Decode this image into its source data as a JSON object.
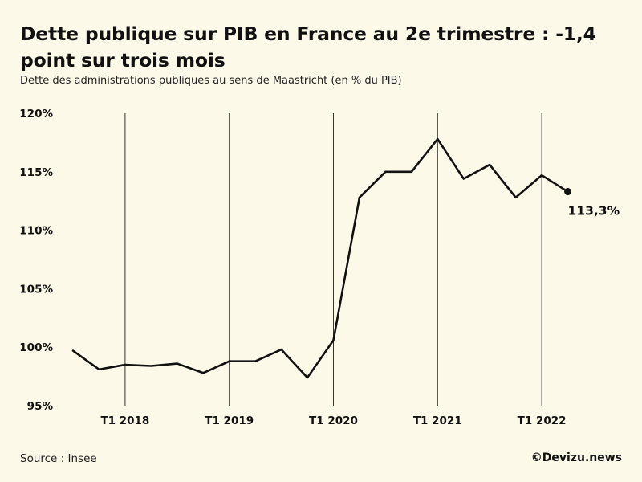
{
  "header": {
    "title": "Dette publique sur PIB en France au 2e trimestre : -1,4 point sur trois mois",
    "subtitle": "Dette des administrations publiques au sens de Maastricht (en % du PIB)"
  },
  "footer": {
    "source": "Source : Insee",
    "credit": "©Devizu.news"
  },
  "chart_data": {
    "type": "line",
    "title": "Dette publique sur PIB en France au 2e trimestre : -1,4 point sur trois mois",
    "subtitle": "Dette des administrations publiques au sens de Maastricht (en % du PIB)",
    "xlabel": "",
    "ylabel": "",
    "ylim": [
      95,
      120
    ],
    "y_ticks": [
      {
        "value": 120,
        "label": "120%"
      },
      {
        "value": 115,
        "label": "115%"
      },
      {
        "value": 110,
        "label": "110%"
      },
      {
        "value": 105,
        "label": "105%"
      },
      {
        "value": 100,
        "label": "100%"
      },
      {
        "value": 95,
        "label": "95%"
      }
    ],
    "x_ticks": [
      {
        "index": 2,
        "label": "T1 2018"
      },
      {
        "index": 6,
        "label": "T1 2019"
      },
      {
        "index": 10,
        "label": "T1 2020"
      },
      {
        "index": 14,
        "label": "T1 2021"
      },
      {
        "index": 18,
        "label": "T1 2022"
      }
    ],
    "grid": "vertical",
    "x": [
      "T3 2017",
      "T4 2017",
      "T1 2018",
      "T2 2018",
      "T3 2018",
      "T4 2018",
      "T1 2019",
      "T2 2019",
      "T3 2019",
      "T4 2019",
      "T1 2020",
      "T2 2020",
      "T3 2020",
      "T4 2020",
      "T1 2021",
      "T2 2021",
      "T3 2021",
      "T4 2021",
      "T1 2022",
      "T2 2022"
    ],
    "series": [
      {
        "values": [
          99.7,
          98.1,
          98.5,
          98.4,
          98.6,
          97.8,
          98.8,
          98.8,
          99.8,
          97.4,
          100.6,
          112.8,
          115.0,
          115.0,
          117.8,
          114.4,
          115.6,
          112.8,
          114.7,
          113.3
        ],
        "color": "#111111"
      }
    ],
    "end_label": "113,3%"
  }
}
